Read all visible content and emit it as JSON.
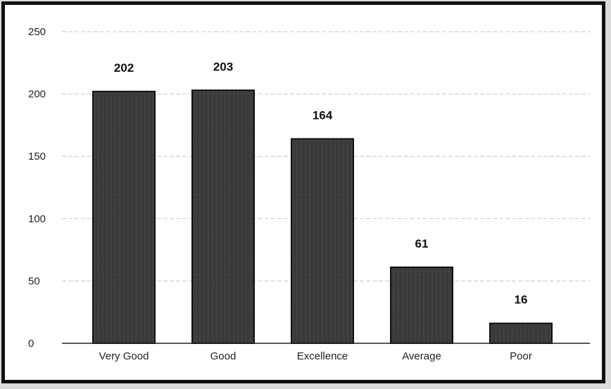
{
  "chart_data": {
    "type": "bar",
    "categories": [
      "Very Good",
      "Good",
      "Excellence",
      "Average",
      "Poor"
    ],
    "values": [
      202,
      203,
      164,
      61,
      16
    ],
    "data_labels": [
      "202",
      "203",
      "164",
      "61",
      "16"
    ],
    "title": "",
    "xlabel": "",
    "ylabel": "",
    "ylim": [
      0,
      250
    ],
    "yticks": [
      "0",
      "50",
      "100",
      "150",
      "200",
      "250"
    ],
    "grid": true,
    "legend": "none",
    "bar_color": "#3a3a3a",
    "bar_edge_color": "#111111"
  }
}
